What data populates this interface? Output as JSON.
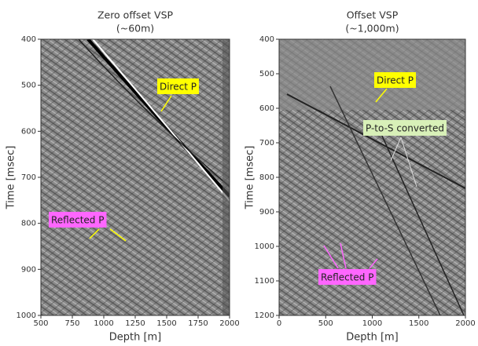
{
  "chart_data": [
    {
      "type": "image",
      "title": "Zero offset VSP",
      "subtitle": "(~60m)",
      "xlabel": "Depth [m]",
      "ylabel": "Time [msec]",
      "xlim": [
        500,
        2000
      ],
      "xticks": [
        500,
        750,
        1000,
        1250,
        1500,
        1750,
        2000
      ],
      "ylim": [
        1000,
        400
      ],
      "yticks": [
        400,
        500,
        600,
        700,
        800,
        900,
        1000
      ],
      "annotations": [
        {
          "text": "Direct P",
          "color": "#ffff00"
        },
        {
          "text": "Reflected P",
          "color": "#ff66ff"
        }
      ]
    },
    {
      "type": "image",
      "title": "Offset VSP",
      "subtitle": "(~1,000m)",
      "xlabel": "Depth [m]",
      "ylabel": "Time [msec]",
      "xlim": [
        0,
        2000
      ],
      "xticks": [
        0,
        500,
        1000,
        1500,
        2000
      ],
      "ylim": [
        1200,
        400
      ],
      "yticks": [
        400,
        500,
        600,
        700,
        800,
        900,
        1000,
        1100,
        1200
      ],
      "annotations": [
        {
          "text": "Direct P",
          "color": "#ffff00"
        },
        {
          "text": "P-to-S converted",
          "color": "#d8f0b8"
        },
        {
          "text": "Reflected P",
          "color": "#ff66ff"
        }
      ]
    }
  ]
}
